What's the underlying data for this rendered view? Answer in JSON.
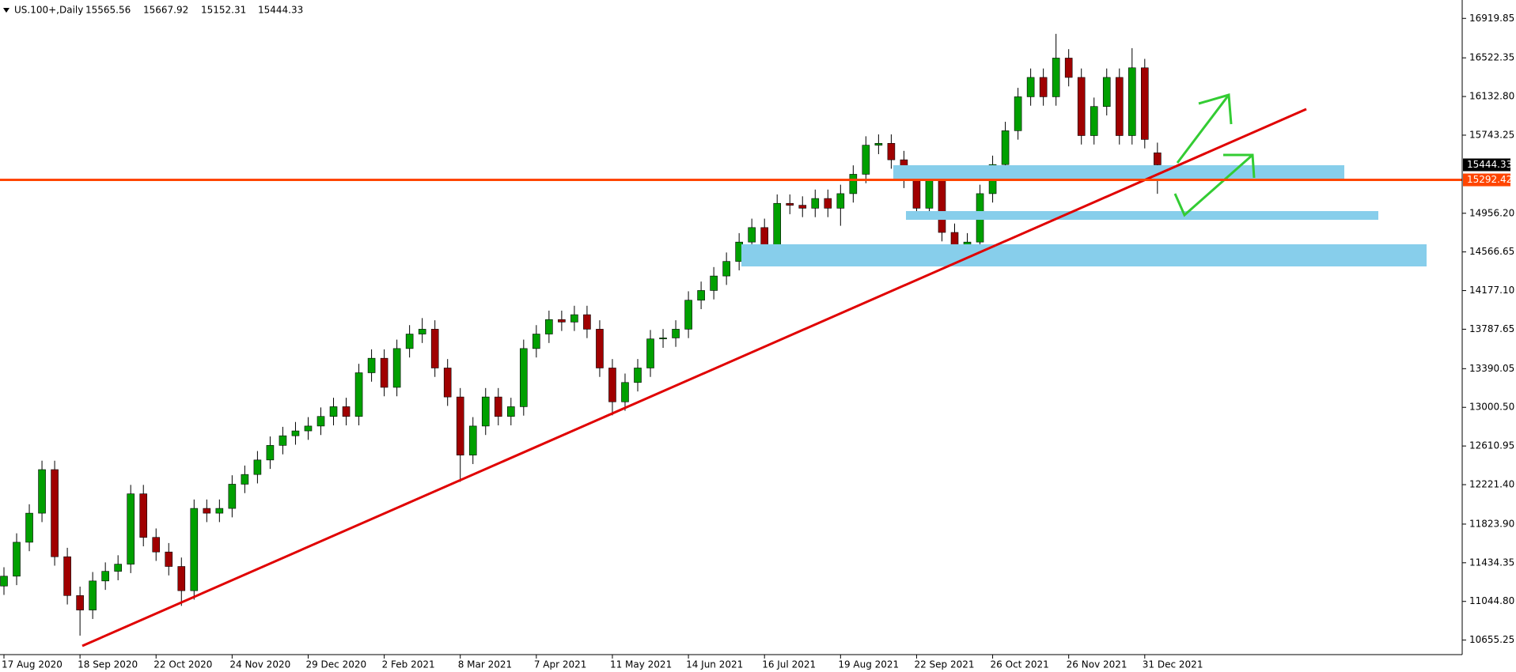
{
  "chart_data": {
    "type": "candlestick",
    "symbol": "US.100+,Daily",
    "categories": [
      "17 Aug 2020",
      null,
      null,
      null,
      null,
      null,
      "18 Sep 2020",
      null,
      null,
      null,
      null,
      null,
      "22 Oct 2020",
      null,
      null,
      null,
      null,
      null,
      "24 Nov 2020",
      null,
      null,
      null,
      null,
      null,
      "29 Dec 2020",
      null,
      null,
      null,
      null,
      null,
      "2 Feb 2021",
      null,
      null,
      null,
      null,
      null,
      "8 Mar 2021",
      null,
      null,
      null,
      null,
      null,
      "7 Apr 2021",
      null,
      null,
      null,
      null,
      null,
      "11 May 2021",
      null,
      null,
      null,
      null,
      null,
      "14 Jun 2021",
      null,
      null,
      null,
      null,
      null,
      "16 Jul 2021",
      null,
      null,
      null,
      null,
      null,
      "19 Aug 2021",
      null,
      null,
      null,
      null,
      null,
      "22 Sep 2021",
      null,
      null,
      null,
      null,
      null,
      "26 Oct 2021",
      null,
      null,
      null,
      null,
      null,
      "26 Nov 2021",
      null,
      null,
      null,
      null,
      null,
      "31 Dec 2021",
      null
    ],
    "open": [
      11200,
      11299,
      11641,
      11934,
      12373,
      11495,
      11104,
      10958,
      11251,
      11348,
      11420,
      12129,
      11690,
      11543,
      11397,
      11153,
      11982,
      11934,
      11982,
      12226,
      12324,
      12470,
      12617,
      12714,
      12763,
      12812,
      12909,
      13007,
      12909,
      13349,
      13495,
      13202,
      13593,
      13739,
      13788,
      13397,
      13105,
      12519,
      12812,
      13105,
      12909,
      13007,
      13593,
      13739,
      13885,
      13860,
      13934,
      13788,
      13397,
      13056,
      13251,
      13397,
      13690,
      13700,
      13788,
      14080,
      14178,
      14324,
      14471,
      14666,
      14812,
      14617,
      15056,
      15037,
      15007,
      15105,
      15007,
      15154,
      15349,
      15642,
      15661,
      15495,
      15300,
      15007,
      15300,
      14763,
      14568,
      14666,
      15154,
      15447,
      15788,
      16130,
      16325,
      16130,
      16520,
      16325,
      15739,
      16032,
      16325,
      15739,
      16422,
      15565.56
    ],
    "high": [
      11389,
      11731,
      12024,
      12463,
      12463,
      11585,
      11194,
      11341,
      11438,
      11510,
      12219,
      12219,
      11780,
      11633,
      11487,
      12072,
      12072,
      12072,
      12316,
      12414,
      12560,
      12707,
      12804,
      12853,
      12902,
      12999,
      13097,
      13097,
      13439,
      13585,
      13585,
      13683,
      13829,
      13900,
      13878,
      13487,
      13195,
      12902,
      13195,
      13195,
      13097,
      13683,
      13829,
      13975,
      13975,
      14024,
      14024,
      13878,
      13487,
      13341,
      13487,
      13780,
      13790,
      13878,
      14170,
      14268,
      14414,
      14561,
      14756,
      14902,
      14902,
      15146,
      15146,
      15127,
      15195,
      15195,
      15244,
      15439,
      15732,
      15751,
      15751,
      15585,
      15390,
      15390,
      15390,
      14853,
      14756,
      15244,
      15537,
      15878,
      16220,
      16415,
      16415,
      16764,
      16610,
      16415,
      16122,
      16415,
      16415,
      16620,
      16512,
      15667.92
    ],
    "low": [
      11110,
      11209,
      11551,
      11844,
      11405,
      11014,
      10700,
      10868,
      11161,
      11258,
      11330,
      11600,
      11453,
      11307,
      11000,
      11063,
      11844,
      11844,
      11892,
      12136,
      12234,
      12380,
      12527,
      12624,
      12673,
      12722,
      12819,
      12819,
      12819,
      13259,
      13112,
      13112,
      13503,
      13649,
      13307,
      13015,
      12250,
      12429,
      12722,
      12819,
      12819,
      12917,
      13503,
      13649,
      13770,
      13770,
      13698,
      13307,
      12920,
      12966,
      13161,
      13307,
      13600,
      13610,
      13698,
      13990,
      14088,
      14234,
      14381,
      14576,
      14480,
      14527,
      14947,
      14917,
      14917,
      14917,
      14830,
      15064,
      15259,
      15552,
      15405,
      15210,
      14917,
      14917,
      14673,
      14420,
      14478,
      14576,
      15064,
      15357,
      15698,
      16040,
      16040,
      16040,
      16235,
      15649,
      15649,
      15942,
      15649,
      15649,
      15610,
      15152.31
    ],
    "close": [
      11299,
      11641,
      11934,
      12373,
      11495,
      11104,
      10958,
      11251,
      11348,
      11420,
      12129,
      11690,
      11543,
      11397,
      11153,
      11982,
      11934,
      11982,
      12226,
      12324,
      12470,
      12617,
      12714,
      12763,
      12812,
      12909,
      13007,
      12909,
      13349,
      13495,
      13202,
      13593,
      13739,
      13788,
      13397,
      13105,
      12519,
      12812,
      13105,
      12909,
      13007,
      13593,
      13739,
      13885,
      13860,
      13934,
      13788,
      13397,
      13056,
      13251,
      13397,
      13690,
      13700,
      13788,
      14080,
      14178,
      14324,
      14471,
      14666,
      14812,
      14617,
      15056,
      15037,
      15007,
      15105,
      15007,
      15154,
      15349,
      15642,
      15661,
      15495,
      15300,
      15007,
      15300,
      14763,
      14568,
      14666,
      15154,
      15447,
      15788,
      16130,
      16325,
      16130,
      16520,
      16325,
      15739,
      16032,
      16325,
      15739,
      16422,
      15700,
      15444.33
    ],
    "up_color": "#00a000",
    "down_color": "#a00000",
    "hline": 15292.42,
    "hline_color": "#ff4500",
    "ylim": [
      10508.8,
      17105.25
    ],
    "yticks": [
      16919.85,
      16522.35,
      {
        "value": 16132.8,
        "label": "16132.80"
      },
      15743.25,
      {
        "value": 14956.2,
        "label": "14956.20"
      },
      14566.65,
      {
        "value": 14177.1,
        "label": "14177.10"
      },
      13787.65,
      13390.05,
      {
        "value": 13000.5,
        "label": "13000.50"
      },
      12610.95,
      {
        "value": 12221.4,
        "label": "12221.40"
      },
      {
        "value": 11823.9,
        "label": "11823.90"
      },
      11434.35,
      {
        "value": 11044.8,
        "label": "11044.80"
      },
      10655.25
    ]
  }
}
